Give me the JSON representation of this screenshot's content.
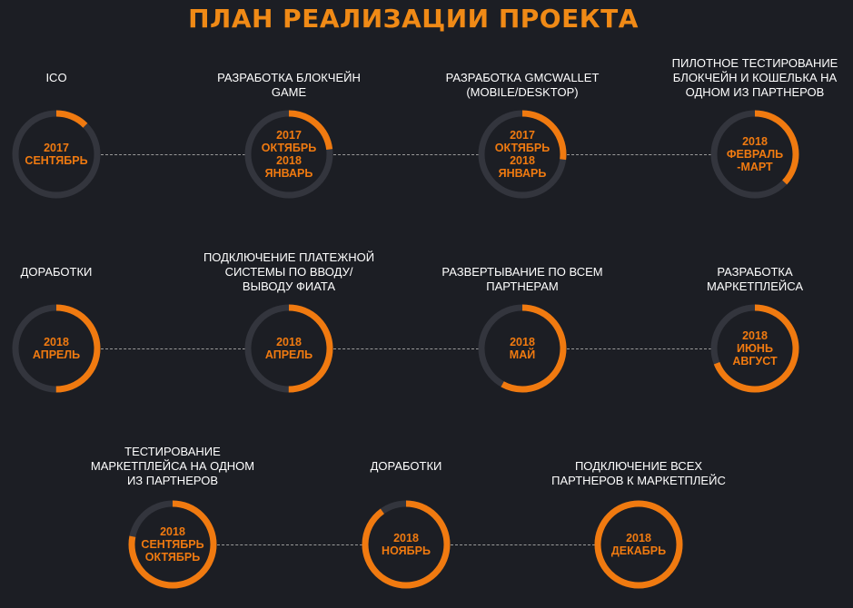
{
  "title": "ПЛАН РЕАЛИЗАЦИИ ПРОЕКТА",
  "colors": {
    "background": "#1c1e24",
    "accent": "#f07a10",
    "track": "#33353d",
    "text": "#ffffff"
  },
  "milestones": [
    {
      "label": "ICO",
      "date": "2017\nСЕНТЯБРЬ",
      "progress": 0.125
    },
    {
      "label": "РАЗРАБОТКА БЛОКЧЕЙН\nGAME",
      "date": "2017\nОКТЯБРЬ\n2018\nЯНВАРЬ",
      "progress": 0.23
    },
    {
      "label": "РАЗРАБОТКА GMCWALLET\n(MOBILE/DESKTOP)",
      "date": "2017\nОКТЯБРЬ\n2018\nЯНВАРЬ",
      "progress": 0.27
    },
    {
      "label": "ПИЛОТНОЕ ТЕСТИРОВАНИЕ\nБЛОКЧЕЙН И КОШЕЛЬКА НА\nОДНОМ ИЗ ПАРТНЕРОВ",
      "date": "2018\nФЕВРАЛЬ\n-МАРТ",
      "progress": 0.37
    },
    {
      "label": "ДОРАБОТКИ",
      "date": "2018\nАПРЕЛЬ",
      "progress": 0.5
    },
    {
      "label": "ПОДКЛЮЧЕНИЕ ПЛАТЕЖНОЙ\nСИСТЕМЫ ПО ВВОДУ/\nВЫВОДУ ФИАТА",
      "date": "2018\nАПРЕЛЬ",
      "progress": 0.5
    },
    {
      "label": "РАЗВЕРТЫВАНИЕ ПО ВСЕМ\nПАРТНЕРАМ",
      "date": "2018\nМАЙ",
      "progress": 0.58
    },
    {
      "label": "РАЗРАБОТКА\nМАРКЕТПЛЕЙСА",
      "date": "2018\nИЮНЬ\nАВГУСТ",
      "progress": 0.69
    },
    {
      "label": "ТЕСТИРОВАНИЕ\nМАРКЕТПЛЕЙСА НА ОДНОМ\nИЗ ПАРТНЕРОВ",
      "date": "2018\nСЕНТЯБРЬ\nОКТЯБРЬ",
      "progress": 0.78
    },
    {
      "label": "ДОРАБОТКИ",
      "date": "2018\nНОЯБРЬ",
      "progress": 0.9
    },
    {
      "label": "ПОДКЛЮЧЕНИЕ ВСЕХ\nПАРТНЕРОВ К МАРКЕТПЛЕЙС",
      "date": "2018\nДЕКАБРЬ",
      "progress": 1.0
    }
  ]
}
